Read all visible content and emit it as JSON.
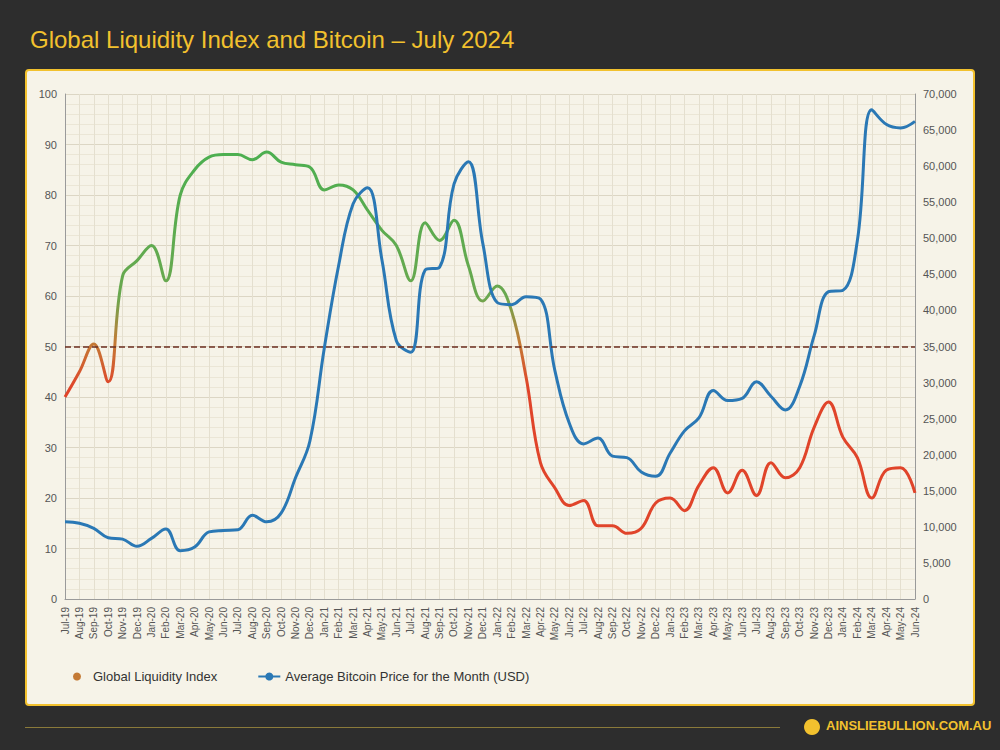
{
  "chart_data": {
    "type": "line",
    "title": "Global Liquidity Index and Bitcoin – July 2024",
    "footer": "AINSLIEBULLION.COM.AU",
    "x": [
      "Jul-19",
      "Aug-19",
      "Sep-19",
      "Oct-19",
      "Nov-19",
      "Dec-19",
      "Jan-20",
      "Feb-20",
      "Mar-20",
      "Apr-20",
      "May-20",
      "Jun-20",
      "Jul-20",
      "Aug-20",
      "Sep-20",
      "Oct-20",
      "Nov-20",
      "Dec-20",
      "Jan-21",
      "Feb-21",
      "Mar-21",
      "Apr-21",
      "May-21",
      "Jun-21",
      "Jul-21",
      "Aug-21",
      "Sep-21",
      "Oct-21",
      "Nov-21",
      "Dec-21",
      "Jan-22",
      "Feb-22",
      "Mar-22",
      "Apr-22",
      "May-22",
      "Jun-22",
      "Jul-22",
      "Aug-22",
      "Sep-22",
      "Oct-22",
      "Nov-22",
      "Dec-22",
      "Jan-23",
      "Feb-23",
      "Mar-23",
      "Apr-23",
      "May-23",
      "Jun-23",
      "Jul-23",
      "Aug-23",
      "Sep-23",
      "Oct-23",
      "Nov-23",
      "Dec-23",
      "Jan-24",
      "Feb-24",
      "Mar-24",
      "Apr-24",
      "May-24",
      "Jun-24"
    ],
    "series": [
      {
        "name": "Global Liquidity Index",
        "color": "#c47a35",
        "axis": "y",
        "values": [
          40,
          45,
          50.5,
          43,
          64,
          67,
          70,
          63,
          80,
          85,
          87.5,
          88,
          88,
          87,
          88.5,
          86.5,
          86,
          85.5,
          81,
          82,
          81,
          77,
          73,
          70,
          63,
          74.5,
          71,
          75,
          66,
          59,
          62,
          57,
          44,
          27,
          22,
          18.5,
          19.5,
          14.5,
          14.5,
          13,
          14,
          19,
          20,
          17.5,
          22.5,
          26,
          21,
          25.5,
          20.5,
          27,
          24,
          26,
          34,
          39,
          32,
          28,
          20,
          25.5,
          26,
          21
        ]
      },
      {
        "name": "Average Bitcoin Price for the Month (USD)",
        "color": "#2a78b5",
        "axis": "y2",
        "values": [
          10700,
          10500,
          9800,
          8500,
          8300,
          7300,
          8400,
          9700,
          6700,
          7200,
          9300,
          9500,
          9600,
          11600,
          10700,
          11900,
          16800,
          21900,
          34800,
          46300,
          54800,
          57000,
          47000,
          35800,
          34200,
          45600,
          46000,
          57500,
          60600,
          49300,
          41100,
          40800,
          41900,
          41600,
          31700,
          24400,
          21500,
          22300,
          19800,
          19600,
          17600,
          17000,
          20200,
          23300,
          25100,
          28900,
          27500,
          27800,
          30100,
          28100,
          26200,
          29500,
          36500,
          42600,
          42800,
          49700,
          67800,
          65800,
          65300,
          66200
        ]
      }
    ],
    "reference_lines": [
      {
        "axis": "y",
        "value": 50,
        "line_style": "dashed",
        "color": "#6b2e1f"
      }
    ],
    "ylim": [
      0,
      100
    ],
    "yticks": [
      0,
      10,
      20,
      30,
      40,
      50,
      60,
      70,
      80,
      90,
      100
    ],
    "y2lim": [
      0,
      70000
    ],
    "y2ticks": [
      0,
      {
        "value": 5000,
        "label": "5,000"
      },
      {
        "value": 10000,
        "label": "10,000"
      },
      {
        "value": 15000,
        "label": "15,000"
      },
      {
        "value": 20000,
        "label": "20,000"
      },
      {
        "value": 25000,
        "label": "25,000"
      },
      {
        "value": 30000,
        "label": "30,000"
      },
      {
        "value": 35000,
        "label": "35,000"
      },
      {
        "value": 40000,
        "label": "40,000"
      },
      {
        "value": 45000,
        "label": "45,000"
      },
      {
        "value": 50000,
        "label": "50,000"
      },
      {
        "value": 55000,
        "label": "55,000"
      },
      {
        "value": 60000,
        "label": "60,000"
      },
      {
        "value": 65000,
        "label": "65,000"
      },
      {
        "value": 70000,
        "label": "70,000"
      }
    ],
    "grid": true,
    "legend": "bottom-left"
  }
}
